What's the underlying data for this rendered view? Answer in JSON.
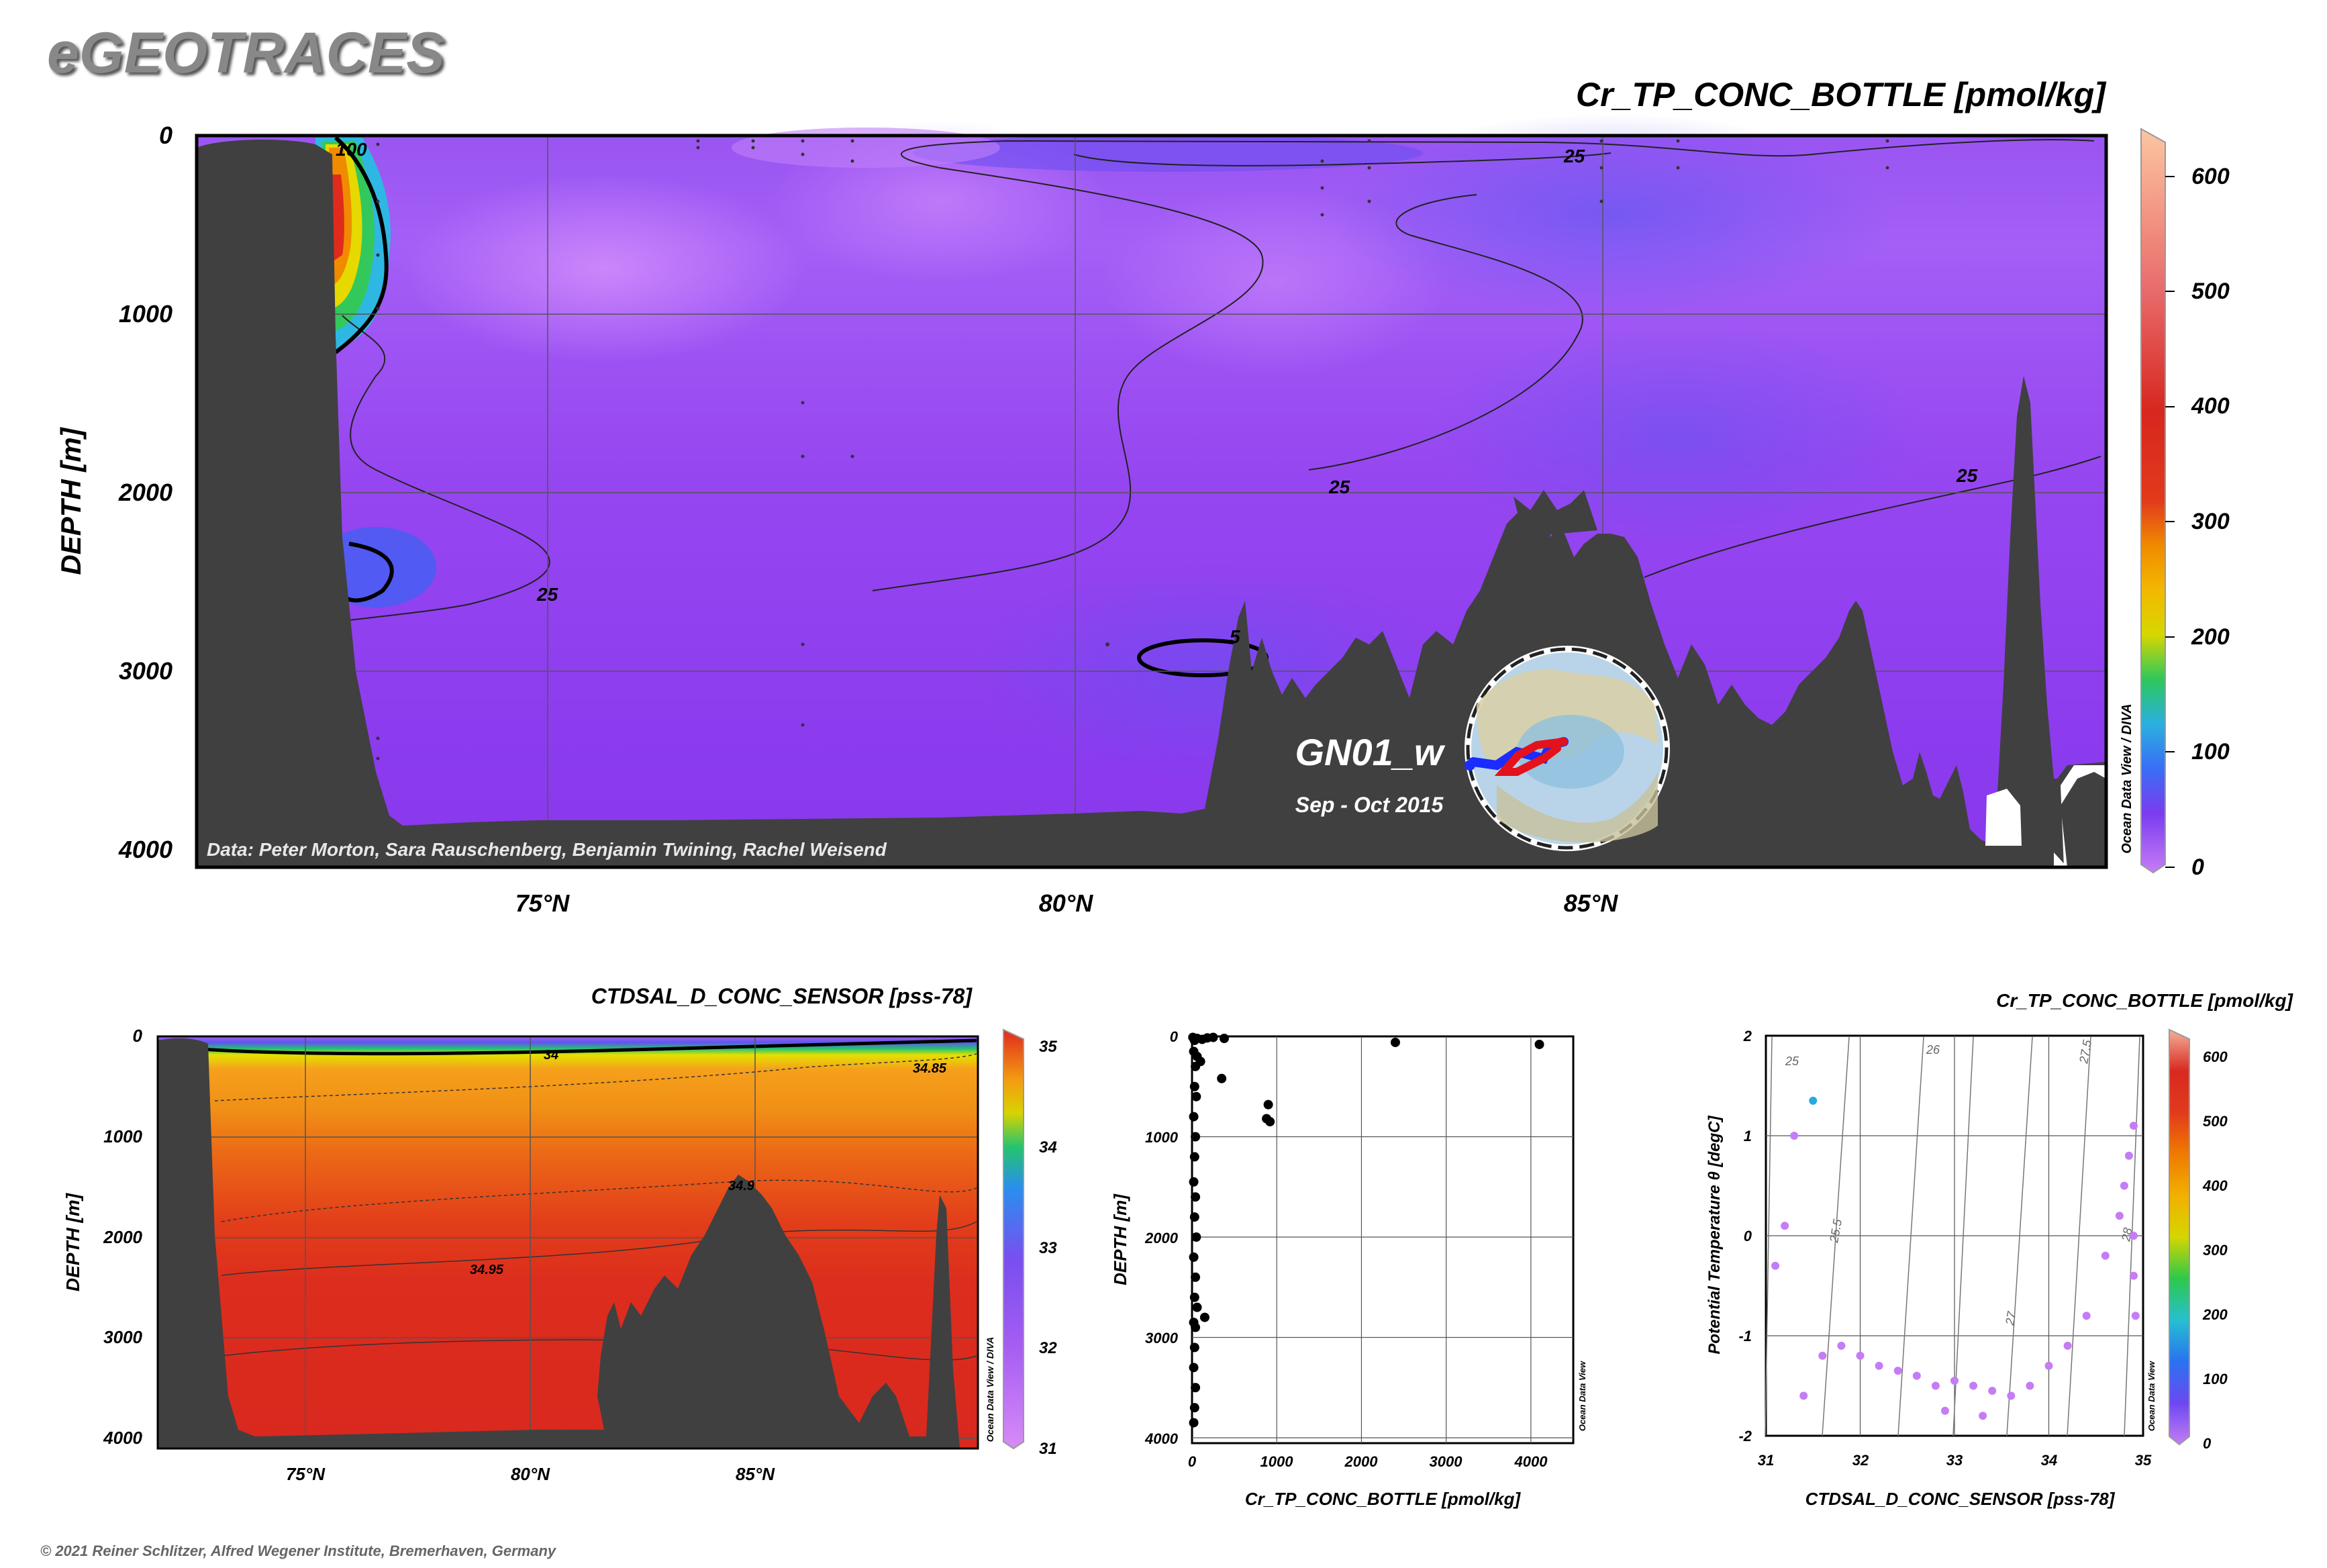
{
  "header": {
    "brand": "eGEOTRACES",
    "copyright": "© 2021 Reiner Schlitzer, Alfred Wegener Institute, Bremerhaven, Germany"
  },
  "chart_data": [
    {
      "id": "main_section",
      "type": "heatmap",
      "title": "Cr_TP_CONC_BOTTLE [pmol/kg]",
      "ylabel": "DEPTH [m]",
      "x_ticks": [
        "75°N",
        "80°N",
        "85°N"
      ],
      "y_ticks": [
        "0",
        "1000",
        "2000",
        "3000",
        "4000"
      ],
      "ylim": [
        0,
        4000
      ],
      "colorbar": {
        "ticks": [
          "0",
          "100",
          "200",
          "300",
          "400",
          "500",
          "600"
        ],
        "range": [
          0,
          650
        ]
      },
      "contour_labels": [
        "25",
        "25",
        "25",
        "25",
        "5",
        "100"
      ],
      "side_label": "Ocean Data View / DIVA",
      "data_credit": "Data: Peter Morton, Sara Rauschenberg, Benjamin Twining, Rachel Weisend",
      "cruise": {
        "name": "GN01_w",
        "dates": "Sep - Oct 2015"
      }
    },
    {
      "id": "salinity_section",
      "type": "heatmap",
      "title": "CTDSAL_D_CONC_SENSOR [pss-78]",
      "ylabel": "DEPTH [m]",
      "x_ticks": [
        "75°N",
        "80°N",
        "85°N"
      ],
      "y_ticks": [
        "0",
        "1000",
        "2000",
        "3000",
        "4000"
      ],
      "ylim": [
        0,
        4000
      ],
      "colorbar": {
        "ticks": [
          "35",
          "34",
          "33",
          "32",
          "31"
        ],
        "range": [
          31,
          35
        ]
      },
      "contour_labels": [
        "34",
        "34.85",
        "34.9",
        "34.95"
      ],
      "side_label": "Ocean Data View / DIVA"
    },
    {
      "id": "profile",
      "type": "scatter",
      "xlabel": "Cr_TP_CONC_BOTTLE [pmol/kg]",
      "ylabel": "DEPTH [m]",
      "xlim": [
        0,
        4500
      ],
      "ylim": [
        0,
        4000
      ],
      "x_ticks": [
        "0",
        "1000",
        "2000",
        "3000",
        "4000"
      ],
      "y_ticks": [
        "0",
        "1000",
        "2000",
        "3000",
        "4000"
      ],
      "side_label": "Ocean Data View",
      "points": [
        [
          10,
          10
        ],
        [
          30,
          40
        ],
        [
          60,
          20
        ],
        [
          120,
          30
        ],
        [
          180,
          15
        ],
        [
          250,
          10
        ],
        [
          380,
          20
        ],
        [
          2400,
          60
        ],
        [
          4100,
          80
        ],
        [
          20,
          150
        ],
        [
          40,
          300
        ],
        [
          60,
          200
        ],
        [
          100,
          250
        ],
        [
          350,
          420
        ],
        [
          900,
          680
        ],
        [
          920,
          850
        ],
        [
          880,
          820
        ],
        [
          30,
          500
        ],
        [
          50,
          600
        ],
        [
          20,
          800
        ],
        [
          40,
          1000
        ],
        [
          30,
          1200
        ],
        [
          20,
          1450
        ],
        [
          40,
          1600
        ],
        [
          30,
          1800
        ],
        [
          50,
          2000
        ],
        [
          20,
          2200
        ],
        [
          40,
          2400
        ],
        [
          30,
          2600
        ],
        [
          60,
          2700
        ],
        [
          20,
          2850
        ],
        [
          40,
          2900
        ],
        [
          150,
          2800
        ],
        [
          30,
          3100
        ],
        [
          20,
          3300
        ],
        [
          40,
          3500
        ],
        [
          30,
          3700
        ],
        [
          20,
          3850
        ]
      ]
    },
    {
      "id": "ts_diagram",
      "type": "scatter",
      "title": "Cr_TP_CONC_BOTTLE [pmol/kg]",
      "xlabel": "CTDSAL_D_CONC_SENSOR [pss-78]",
      "ylabel": "Potential Temperature θ [degC]",
      "xlim": [
        31,
        35
      ],
      "ylim": [
        -2,
        2
      ],
      "x_ticks": [
        "31",
        "32",
        "33",
        "34",
        "35"
      ],
      "y_ticks": [
        "2",
        "1",
        "0",
        "-1",
        "-2"
      ],
      "isopycnal_labels": [
        "25",
        "25.5",
        "26",
        "27",
        "27.5",
        "28"
      ],
      "colorbar": {
        "ticks": [
          "600",
          "500",
          "400",
          "300",
          "200",
          "100",
          "0"
        ],
        "range": [
          0,
          650
        ]
      },
      "side_label": "Ocean Data View",
      "points": [
        [
          31.1,
          -0.3,
          40
        ],
        [
          31.2,
          0.1,
          30
        ],
        [
          31.3,
          1.0,
          40
        ],
        [
          31.5,
          1.35,
          220
        ],
        [
          31.4,
          -1.6,
          30
        ],
        [
          31.6,
          -1.2,
          40
        ],
        [
          31.8,
          -1.1,
          30
        ],
        [
          32.0,
          -1.2,
          50
        ],
        [
          32.2,
          -1.3,
          40
        ],
        [
          32.4,
          -1.35,
          35
        ],
        [
          32.6,
          -1.4,
          30
        ],
        [
          32.8,
          -1.5,
          40
        ],
        [
          33.0,
          -1.45,
          30
        ],
        [
          33.2,
          -1.5,
          40
        ],
        [
          33.4,
          -1.55,
          50
        ],
        [
          33.6,
          -1.6,
          40
        ],
        [
          33.8,
          -1.5,
          30
        ],
        [
          34.0,
          -1.3,
          40
        ],
        [
          34.2,
          -1.1,
          30
        ],
        [
          34.4,
          -0.8,
          40
        ],
        [
          34.6,
          -0.2,
          30
        ],
        [
          34.75,
          0.2,
          35
        ],
        [
          34.8,
          0.5,
          40
        ],
        [
          34.85,
          0.8,
          30
        ],
        [
          34.9,
          1.1,
          40
        ],
        [
          34.9,
          0.0,
          30
        ],
        [
          34.9,
          -0.4,
          40
        ],
        [
          34.92,
          -0.8,
          35
        ],
        [
          32.9,
          -1.75,
          40
        ],
        [
          33.3,
          -1.8,
          50
        ]
      ]
    }
  ]
}
